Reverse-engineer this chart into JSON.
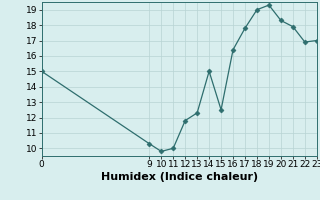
{
  "x": [
    0,
    9,
    10,
    11,
    12,
    13,
    14,
    15,
    16,
    17,
    18,
    19,
    20,
    21,
    22,
    23
  ],
  "y": [
    15.0,
    10.3,
    9.8,
    10.0,
    11.8,
    12.3,
    15.0,
    12.5,
    16.4,
    17.8,
    19.0,
    19.3,
    18.3,
    17.9,
    16.9,
    17.0
  ],
  "xlim": [
    0,
    23
  ],
  "ylim": [
    9.5,
    19.5
  ],
  "yticks": [
    10,
    11,
    12,
    13,
    14,
    15,
    16,
    17,
    18,
    19
  ],
  "xticks": [
    0,
    9,
    10,
    11,
    12,
    13,
    14,
    15,
    16,
    17,
    18,
    19,
    20,
    21,
    22,
    23
  ],
  "xlabel": "Humidex (Indice chaleur)",
  "line_color": "#2e6e6e",
  "marker": "D",
  "marker_size": 2.5,
  "bg_color": "#d8eeee",
  "grid_color": "#b8d4d4",
  "tick_fontsize": 6.5,
  "xlabel_fontsize": 8
}
